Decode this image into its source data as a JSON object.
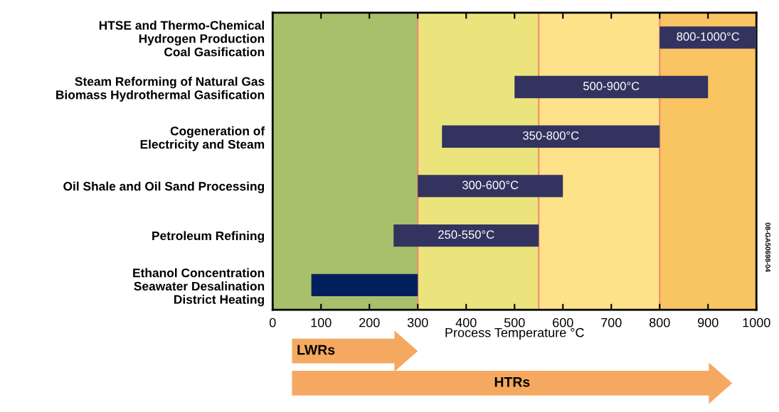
{
  "chart_data": {
    "type": "bar",
    "orientation": "horizontal",
    "categories": [
      "HTSE and Thermo-Chemical\nHydrogen Production\nCoal Gasification",
      "Steam Reforming of Natural Gas\nBiomass Hydrothermal Gasification",
      "Cogeneration of\nElectricity and Steam",
      "Oil Shale and Oil Sand Processing",
      "Petroleum Refining",
      "Ethanol Concentration\nSeawater Desalination\nDistrict Heating"
    ],
    "base": [
      800,
      500,
      350,
      300,
      250,
      80
    ],
    "values": [
      200,
      400,
      450,
      300,
      300,
      220
    ],
    "colors": [
      "#33335f",
      "#33335f",
      "#33335f",
      "#33335f",
      "#33335f",
      "#001f5c"
    ],
    "value_labels": [
      "800-1000°C",
      "500-900°C",
      "350-800°C",
      "300-600°C",
      "250-550°C",
      null
    ],
    "xlabel": "Process Temperature °C",
    "xlim": [
      0,
      1000
    ],
    "xticks": [
      0,
      100,
      200,
      300,
      400,
      500,
      600,
      700,
      800,
      900,
      1000
    ],
    "bands": [
      {
        "axis": "x",
        "from": 0,
        "to": 300,
        "color": "#a9c06a"
      },
      {
        "axis": "x",
        "from": 300,
        "to": 550,
        "color": "#ebe47c"
      },
      {
        "axis": "x",
        "from": 550,
        "to": 800,
        "color": "#fde28a"
      },
      {
        "axis": "x",
        "from": 800,
        "to": 1000,
        "color": "#f9c462"
      }
    ],
    "ref_lines": [
      {
        "axis": "x",
        "value": 300,
        "color": "#f08a70"
      },
      {
        "axis": "x",
        "value": 550,
        "color": "#f08a70"
      },
      {
        "axis": "x",
        "value": 800,
        "color": "#f08a70"
      }
    ],
    "annotations": [
      "LWRs",
      "HTRs",
      "08-GA50698-04"
    ],
    "grid": false,
    "legend": false
  }
}
